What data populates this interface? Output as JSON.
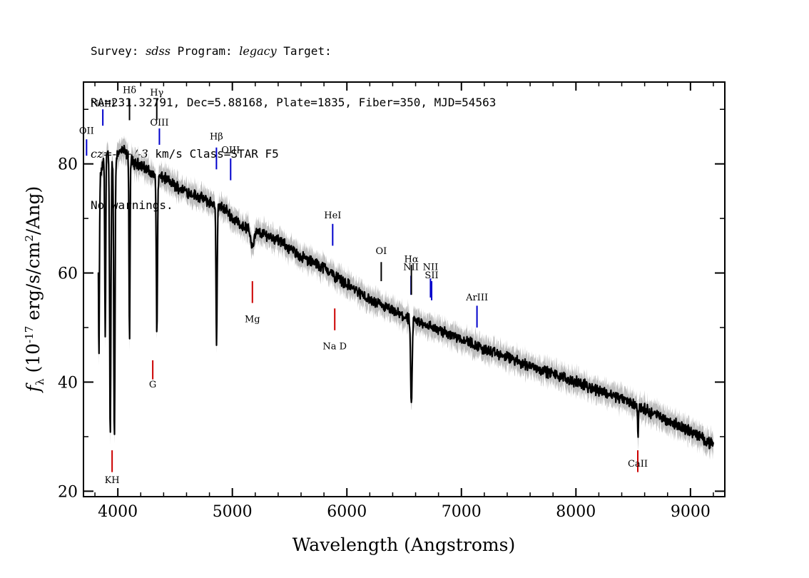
{
  "header": {
    "line1": {
      "survey_label": "Survey: ",
      "survey": "sdss",
      "program_label": " Program: ",
      "program": "legacy",
      "target_label": " Target:"
    },
    "line2": "RA=231.32791, Dec=5.88168, Plate=1835, Fiber=350, MJD=54563",
    "line3": {
      "cz": "cz=-5+/-3",
      "rest": " km/s Class=STAR F5"
    },
    "line4": "No warnings."
  },
  "colors": {
    "spectrum": "#000000",
    "error_band": "#bdbdbd",
    "emission_marker": "#0000cc",
    "absorption_marker": "#cc0000",
    "unlabeled_marker": "#000000"
  },
  "chart_data": {
    "type": "line",
    "xlabel": "Wavelength (Angstroms)",
    "ylabel": "f_λ (10^-17 erg/s/cm^2/Ang)",
    "xlim": [
      3700,
      9300
    ],
    "ylim": [
      19,
      95
    ],
    "x_ticks": [
      4000,
      5000,
      6000,
      7000,
      8000,
      9000
    ],
    "y_ticks": [
      20,
      40,
      60,
      80
    ],
    "continuum": {
      "x": [
        3830,
        3870,
        3900,
        3950,
        4000,
        4050,
        4100,
        4150,
        4200,
        4250,
        4300,
        4350,
        4400,
        4500,
        4600,
        4700,
        4800,
        4850,
        4900,
        4950,
        5000,
        5100,
        5200,
        5300,
        5400,
        5500,
        5600,
        5700,
        5800,
        5900,
        6000,
        6100,
        6200,
        6300,
        6400,
        6500,
        6600,
        6700,
        6800,
        6900,
        7000,
        7200,
        7400,
        7600,
        7800,
        8000,
        8200,
        8400,
        8600,
        8800,
        9000,
        9200
      ],
      "y": [
        76,
        80,
        82,
        81,
        82,
        82.5,
        81,
        80,
        80,
        79,
        78,
        77.5,
        77.5,
        76,
        75,
        74,
        73,
        72.5,
        72,
        71.5,
        70,
        68.5,
        67.5,
        67,
        66,
        64.5,
        63,
        62,
        61,
        59.5,
        58,
        56.5,
        55,
        54,
        53,
        52,
        51.2,
        50.5,
        49.5,
        48.8,
        48,
        46,
        44.5,
        43,
        41.5,
        40,
        38.5,
        37,
        35,
        33,
        31,
        28.5
      ]
    },
    "absorption_features": [
      {
        "x": 3835,
        "depth_to": 44.5,
        "width": 6
      },
      {
        "x": 3890,
        "depth_to": 49,
        "width": 6
      },
      {
        "x": 3934,
        "depth_to": 30.5,
        "width": 8
      },
      {
        "x": 3970,
        "depth_to": 30,
        "width": 8
      },
      {
        "x": 4102,
        "depth_to": 48,
        "width": 6
      },
      {
        "x": 4341,
        "depth_to": 48.5,
        "width": 7
      },
      {
        "x": 4862,
        "depth_to": 46.5,
        "width": 7
      },
      {
        "x": 5175,
        "depth_to": 65,
        "width": 20
      },
      {
        "x": 5893,
        "depth_to": 59,
        "width": 10
      },
      {
        "x": 6563,
        "depth_to": 36,
        "width": 10
      },
      {
        "x": 8542,
        "depth_to": 30.5,
        "width": 5
      }
    ],
    "emission_lines": [
      {
        "label": "OII",
        "x": 3727,
        "label_y": 85.5,
        "tick_top": 84.5,
        "tick_bottom": 81.5
      },
      {
        "label": "NeIII",
        "x": 3869,
        "label_y": 90.5,
        "tick_top": 90,
        "tick_bottom": 87
      },
      {
        "label": "OIII",
        "x": 4363,
        "label_y": 87,
        "tick_top": 86.5,
        "tick_bottom": 83.5
      },
      {
        "label": "Hβ",
        "x": 4861,
        "label_y": 84.5,
        "tick_top": 83,
        "tick_bottom": 79
      },
      {
        "label": "OIII",
        "x": 4985,
        "label_y": 82,
        "tick_top": 81,
        "tick_bottom": 77
      },
      {
        "label": "HeI",
        "x": 5876,
        "label_y": 70,
        "tick_top": 69,
        "tick_bottom": 65
      },
      {
        "label": "NII",
        "x": 6560,
        "label_y": 60.5,
        "tick_top": 59.5,
        "tick_bottom": 56
      },
      {
        "label": "NII",
        "x": 6730,
        "label_y": 60.5,
        "tick_top": 59,
        "tick_bottom": 55.5
      },
      {
        "label": "SII",
        "x": 6740,
        "label_y": 59,
        "tick_top": 58.5,
        "tick_bottom": 55
      },
      {
        "label": "ArIII",
        "x": 7136,
        "label_y": 55,
        "tick_top": 54,
        "tick_bottom": 50
      }
    ],
    "hydrogen_lines": [
      {
        "label": "Hδ",
        "x": 4102,
        "label_y": 93,
        "tick_top": 92,
        "tick_bottom": 88
      },
      {
        "label": "Hγ",
        "x": 4340,
        "label_y": 92.5,
        "tick_top": 92,
        "tick_bottom": 88
      },
      {
        "label": "OI",
        "x": 6300,
        "label_y": 63.5,
        "tick_top": 62,
        "tick_bottom": 58.5
      },
      {
        "label": "Hα",
        "x": 6563,
        "label_y": 62,
        "tick_top": 61.5,
        "tick_bottom": 56
      }
    ],
    "absorption_lines": [
      {
        "label": "KH",
        "x": 3950,
        "label_y": 21.5,
        "tick_top": 27.5,
        "tick_bottom": 23.5
      },
      {
        "label": "G",
        "x": 4305,
        "label_y": 39,
        "tick_top": 44,
        "tick_bottom": 40.5
      },
      {
        "label": "Mg",
        "x": 5175,
        "label_y": 51,
        "tick_top": 58.5,
        "tick_bottom": 54.5
      },
      {
        "label": "Na D",
        "x": 5894,
        "label_y": 46,
        "tick_top": 53.5,
        "tick_bottom": 49.5
      },
      {
        "label": "CaII",
        "x": 8540,
        "label_y": 24.5,
        "tick_top": 27.5,
        "tick_bottom": 23.5
      }
    ]
  }
}
